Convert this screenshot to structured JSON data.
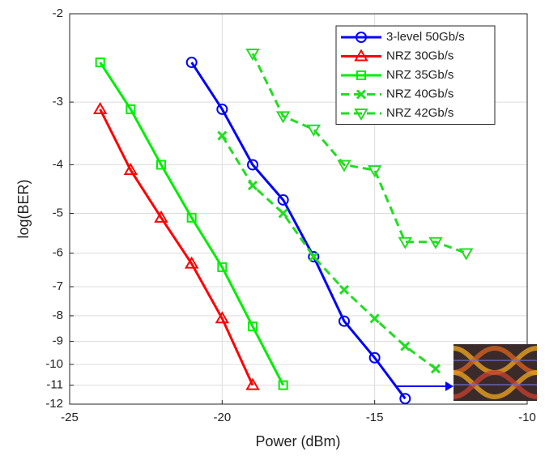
{
  "chart_data": {
    "type": "line",
    "xlabel": "Power (dBm)",
    "ylabel": "log(BER)",
    "xlim": [
      -25,
      -10
    ],
    "xticks": [
      -25,
      -20,
      -15,
      -10
    ],
    "ylim": [
      -2,
      -12
    ],
    "yticks": [
      -2,
      -3,
      -4,
      -5,
      -6,
      -7,
      -8,
      -9,
      -10,
      -11,
      -12
    ],
    "yscale": "log-of-negative",
    "grid": true,
    "legend": "upper right",
    "series": [
      {
        "name": "3-level 50Gb/s",
        "color": "#0000ff",
        "marker": "circle",
        "linestyle": "solid",
        "x": [
          -21,
          -20,
          -19,
          -18,
          -17,
          -16,
          -15,
          -14
        ],
        "values": [
          -2.5,
          -3.1,
          -4.0,
          -4.7,
          -6.1,
          -8.2,
          -9.7,
          -11.7
        ]
      },
      {
        "name": "NRZ 30Gb/s",
        "color": "#ff0000",
        "marker": "triangle",
        "linestyle": "solid",
        "x": [
          -24,
          -23,
          -22,
          -21,
          -20,
          -19
        ],
        "values": [
          -3.1,
          -4.1,
          -5.1,
          -6.3,
          -8.1,
          -11
        ]
      },
      {
        "name": "NRZ 35Gb/s",
        "color": "#00ee00",
        "marker": "square",
        "linestyle": "solid",
        "x": [
          -24,
          -23,
          -22,
          -21,
          -20,
          -19,
          -18
        ],
        "values": [
          -2.5,
          -3.1,
          -4.0,
          -5.1,
          -6.4,
          -8.4,
          -11
        ]
      },
      {
        "name": "NRZ 40Gb/s",
        "color": "#22dd22",
        "marker": "x",
        "linestyle": "dashed",
        "x": [
          -20,
          -19,
          -18,
          -17,
          -16,
          -15,
          -14,
          -13
        ],
        "values": [
          -3.5,
          -4.4,
          -5.0,
          -6.1,
          -7.1,
          -8.1,
          -9.2,
          -10.2
        ]
      },
      {
        "name": "NRZ 42Gb/s",
        "color": "#22dd22",
        "marker": "triangle-down",
        "linestyle": "dashed",
        "x": [
          -19,
          -18,
          -17,
          -16,
          -15,
          -14,
          -13,
          -12
        ],
        "values": [
          -2.4,
          -3.2,
          -3.4,
          -4.0,
          -4.1,
          -5.7,
          -5.7,
          -6.0
        ]
      }
    ]
  }
}
